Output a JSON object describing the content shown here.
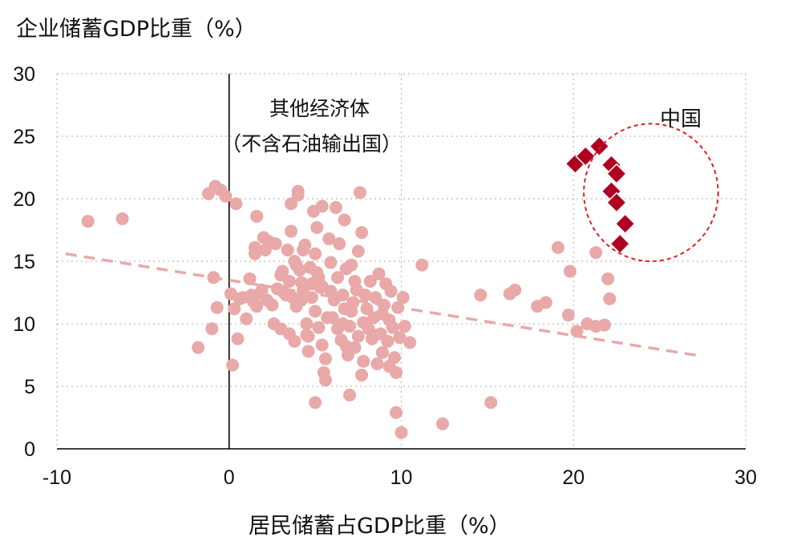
{
  "chart_data": {
    "type": "scatter",
    "xlabel": "居民储蓄占GDP比重（%）",
    "ylabel": "企业储蓄GDP比重（%）",
    "xlim": [
      -10,
      30
    ],
    "ylim": [
      0,
      30
    ],
    "xticks": [
      "-10",
      "0",
      "10",
      "20",
      "30"
    ],
    "yticks": [
      "0",
      "5",
      "10",
      "15",
      "20",
      "25",
      "30"
    ],
    "grid": "dotted",
    "annotations": {
      "other_line1": "其他经济体",
      "other_line2": "（不含石油输出国）",
      "china": "中国"
    },
    "colors": {
      "other": "#e8a9a8",
      "china": "#b0001f",
      "trend": "#e8a9a8",
      "circle": "#e02020"
    },
    "trendline": {
      "x": [
        -9.5,
        27.5
      ],
      "y": [
        15.6,
        7.4
      ]
    },
    "china_highlight": {
      "cx": 24.5,
      "cy": 20.5,
      "rx": 3.9,
      "ry": 5.5
    },
    "series": [
      {
        "marker": "circle",
        "points": [
          [
            -8.2,
            18.2
          ],
          [
            -6.2,
            18.4
          ],
          [
            -1.8,
            8.1
          ],
          [
            -1.2,
            20.4
          ],
          [
            -1.0,
            9.6
          ],
          [
            -0.9,
            13.7
          ],
          [
            -0.8,
            21.0
          ],
          [
            -0.7,
            11.3
          ],
          [
            -0.5,
            20.7
          ],
          [
            -0.2,
            20.2
          ],
          [
            0.1,
            12.4
          ],
          [
            0.2,
            6.7
          ],
          [
            0.3,
            11.2
          ],
          [
            0.4,
            19.6
          ],
          [
            0.5,
            8.8
          ],
          [
            0.6,
            12.0
          ],
          [
            0.8,
            12.1
          ],
          [
            1.0,
            10.4
          ],
          [
            1.2,
            13.6
          ],
          [
            1.3,
            12.3
          ],
          [
            1.4,
            11.8
          ],
          [
            1.5,
            15.6
          ],
          [
            1.5,
            16.1
          ],
          [
            1.6,
            11.4
          ],
          [
            1.6,
            18.6
          ],
          [
            1.8,
            12.4
          ],
          [
            1.9,
            12.7
          ],
          [
            2.0,
            16.9
          ],
          [
            2.1,
            15.9
          ],
          [
            2.2,
            11.9
          ],
          [
            2.3,
            16.6
          ],
          [
            2.5,
            11.5
          ],
          [
            2.6,
            10.0
          ],
          [
            2.7,
            16.4
          ],
          [
            2.8,
            12.8
          ],
          [
            3.0,
            9.6
          ],
          [
            3.0,
            13.9
          ],
          [
            3.1,
            14.2
          ],
          [
            3.1,
            12.6
          ],
          [
            3.3,
            12.3
          ],
          [
            3.4,
            15.9
          ],
          [
            3.5,
            9.2
          ],
          [
            3.5,
            13.4
          ],
          [
            3.6,
            19.6
          ],
          [
            3.6,
            17.4
          ],
          [
            3.7,
            12.1
          ],
          [
            3.8,
            15.0
          ],
          [
            3.8,
            8.6
          ],
          [
            3.9,
            14.7
          ],
          [
            3.9,
            11.4
          ],
          [
            4.0,
            20.3
          ],
          [
            4.0,
            20.6
          ],
          [
            4.1,
            14.3
          ],
          [
            4.2,
            13.3
          ],
          [
            4.3,
            12.7
          ],
          [
            4.3,
            15.9
          ],
          [
            4.4,
            16.3
          ],
          [
            4.5,
            10.0
          ],
          [
            4.5,
            9.1
          ],
          [
            4.6,
            7.8
          ],
          [
            4.7,
            14.5
          ],
          [
            4.8,
            13.2
          ],
          [
            4.8,
            12.1
          ],
          [
            4.9,
            19.0
          ],
          [
            5.0,
            3.7
          ],
          [
            5.0,
            11.0
          ],
          [
            5.0,
            15.6
          ],
          [
            5.1,
            17.7
          ],
          [
            5.1,
            14.1
          ],
          [
            5.2,
            13.7
          ],
          [
            5.2,
            9.7
          ],
          [
            5.3,
            12.9
          ],
          [
            5.4,
            19.4
          ],
          [
            5.4,
            8.3
          ],
          [
            5.5,
            6.1
          ],
          [
            5.6,
            5.5
          ],
          [
            5.7,
            10.5
          ],
          [
            5.8,
            16.8
          ],
          [
            5.9,
            14.9
          ],
          [
            6.0,
            10.5
          ],
          [
            6.1,
            11.9
          ],
          [
            6.2,
            19.3
          ],
          [
            6.3,
            9.6
          ],
          [
            6.3,
            13.7
          ],
          [
            6.4,
            16.4
          ],
          [
            6.5,
            8.7
          ],
          [
            6.6,
            12.3
          ],
          [
            6.7,
            11.2
          ],
          [
            6.7,
            18.3
          ],
          [
            6.8,
            14.4
          ],
          [
            6.9,
            7.5
          ],
          [
            7.0,
            4.3
          ],
          [
            7.0,
            9.8
          ],
          [
            7.1,
            14.7
          ],
          [
            7.2,
            11.7
          ],
          [
            7.3,
            13.4
          ],
          [
            7.3,
            8.1
          ],
          [
            7.4,
            12.7
          ],
          [
            7.5,
            9.0
          ],
          [
            7.5,
            15.8
          ],
          [
            7.6,
            20.5
          ],
          [
            7.7,
            17.3
          ],
          [
            7.8,
            10.1
          ],
          [
            7.8,
            7.0
          ],
          [
            7.9,
            12.3
          ],
          [
            8.0,
            11.2
          ],
          [
            8.1,
            9.6
          ],
          [
            8.2,
            13.4
          ],
          [
            8.3,
            8.8
          ],
          [
            8.4,
            10.5
          ],
          [
            8.5,
            12.1
          ],
          [
            8.6,
            6.8
          ],
          [
            8.7,
            14.0
          ],
          [
            8.8,
            9.2
          ],
          [
            8.9,
            7.7
          ],
          [
            9.0,
            11.5
          ],
          [
            9.1,
            13.2
          ],
          [
            9.2,
            8.6
          ],
          [
            9.3,
            10.3
          ],
          [
            9.4,
            12.6
          ],
          [
            9.5,
            9.7
          ],
          [
            9.6,
            7.3
          ],
          [
            9.7,
            2.9
          ],
          [
            9.7,
            6.1
          ],
          [
            9.8,
            11.3
          ],
          [
            9.9,
            8.9
          ],
          [
            10.0,
            1.3
          ],
          [
            10.1,
            12.1
          ],
          [
            10.2,
            9.8
          ],
          [
            10.5,
            8.5
          ],
          [
            11.2,
            14.7
          ],
          [
            12.4,
            2.0
          ],
          [
            14.6,
            12.3
          ],
          [
            15.2,
            3.7
          ],
          [
            16.3,
            12.4
          ],
          [
            16.6,
            12.7
          ],
          [
            17.9,
            11.4
          ],
          [
            18.4,
            11.7
          ],
          [
            19.1,
            16.1
          ],
          [
            19.7,
            10.7
          ],
          [
            19.8,
            14.2
          ],
          [
            20.2,
            9.4
          ],
          [
            20.8,
            10.0
          ],
          [
            21.3,
            15.7
          ],
          [
            21.3,
            9.8
          ],
          [
            21.8,
            9.9
          ],
          [
            22.0,
            13.6
          ],
          [
            22.1,
            12.0
          ],
          [
            5.4,
            13.0
          ],
          [
            6.6,
            10.0
          ],
          [
            7.1,
            11.0
          ],
          [
            8.4,
            9.1
          ],
          [
            9.3,
            6.6
          ],
          [
            4.6,
            9.0
          ],
          [
            5.9,
            12.6
          ],
          [
            7.7,
            5.9
          ],
          [
            8.9,
            10.8
          ],
          [
            6.8,
            8.2
          ],
          [
            4.2,
            11.9
          ],
          [
            5.6,
            7.2
          ]
        ]
      },
      {
        "name": "中国",
        "marker": "diamond",
        "points": [
          [
            20.1,
            22.8
          ],
          [
            20.7,
            23.4
          ],
          [
            21.5,
            24.2
          ],
          [
            22.2,
            22.7
          ],
          [
            22.5,
            22.0
          ],
          [
            22.2,
            20.6
          ],
          [
            22.5,
            19.7
          ],
          [
            23.0,
            18.0
          ],
          [
            22.7,
            16.4
          ]
        ]
      }
    ]
  }
}
